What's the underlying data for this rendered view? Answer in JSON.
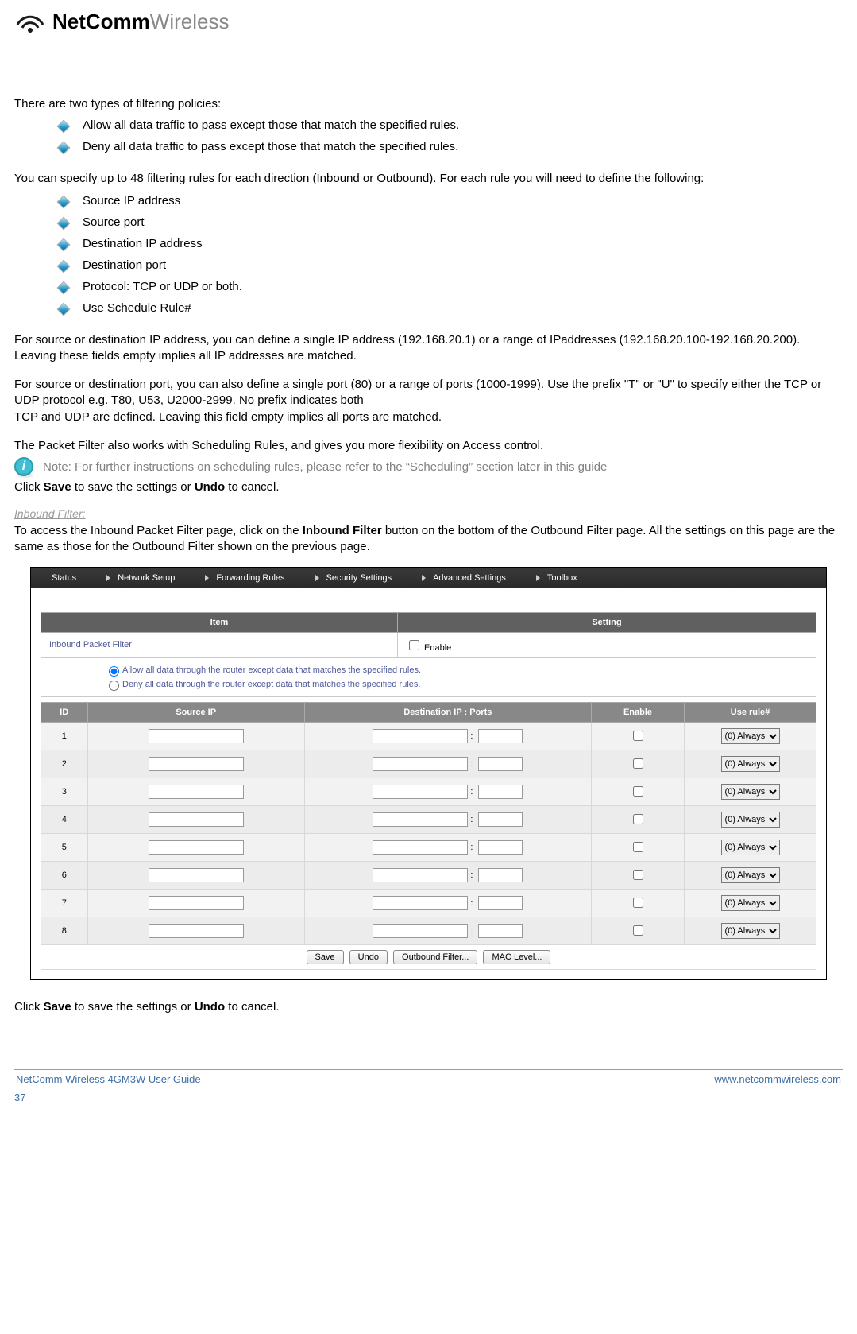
{
  "logo": {
    "brand_bold": "NetComm",
    "brand_light": "Wireless"
  },
  "intro": "There are two types of filtering policies:",
  "policies": [
    "Allow all data traffic to pass except those that match the specified rules.",
    "Deny all data traffic to pass except those that match the specified rules."
  ],
  "rules_intro": "You can specify up to 48 filtering rules for each direction (Inbound or Outbound). For each rule you will need to define the following:",
  "rule_fields": [
    "Source IP address",
    "Source port",
    "Destination IP address",
    "Destination port",
    "Protocol: TCP or UDP or both.",
    "Use Schedule Rule#"
  ],
  "para_ip": "For source or destination IP address, you can define a single IP address (192.168.20.1) or a range of IPaddresses (192.168.20.100-192.168.20.200). Leaving these fields empty implies all IP addresses are matched.",
  "para_port": "For source or destination port, you can also define a single port (80) or a range of ports (1000-1999). Use the prefix \"T\" or \"U\" to specify either the TCP or UDP protocol e.g. T80, U53, U2000-2999. No prefix indicates both\nTCP and UDP are defined. Leaving this field empty implies all ports are matched.",
  "para_sched": "The Packet Filter also works with Scheduling Rules, and gives you more flexibility on Access control.",
  "info_letter": "i",
  "note_text": "Note: For further instructions on scheduling rules, please refer to the “Scheduling” section later in this guide",
  "save_undo_1": "Click Save to save the settings or Undo to cancel.",
  "subhead": "Inbound Filter:",
  "inbound_text": "To access the Inbound Packet Filter page, click on the Inbound Filter button on the bottom of the Outbound Filter page. All the settings on this page are the same as those for the Outbound Filter shown on the previous page.",
  "save_undo_2": "Click Save to save the settings or Undo to cancel.",
  "screenshot": {
    "nav": [
      "Status",
      "Network Setup",
      "Forwarding Rules",
      "Security Settings",
      "Advanced Settings",
      "Toolbox"
    ],
    "nav_caret": [
      false,
      true,
      true,
      true,
      true,
      true
    ],
    "item_setting": {
      "headers": [
        "Item",
        "Setting"
      ],
      "row_label": "Inbound Packet Filter",
      "enable_label": "Enable"
    },
    "radios": [
      "Allow all data through the router except data that matches the specified rules.",
      "Deny all data through the router except data that matches the specified rules."
    ],
    "rules": {
      "headers": [
        "ID",
        "Source IP",
        "Destination IP : Ports",
        "Enable",
        "Use rule#"
      ],
      "col_widths": [
        "6%",
        "28%",
        "37%",
        "12%",
        "17%"
      ],
      "row_count": 8,
      "dropdown_value": "(0) Always"
    },
    "buttons": [
      "Save",
      "Undo",
      "Outbound Filter...",
      "MAC Level..."
    ]
  },
  "footer": {
    "left": "NetComm Wireless 4GM3W User Guide",
    "right": "www.netcommwireless.com",
    "page": "37"
  }
}
